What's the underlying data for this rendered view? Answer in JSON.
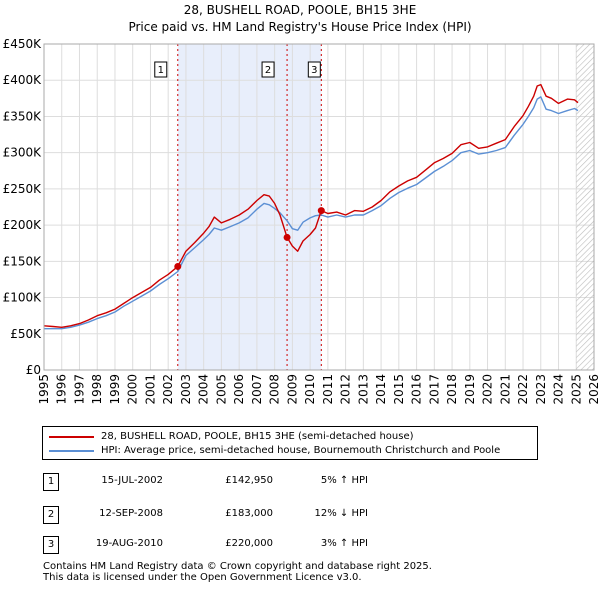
{
  "title_line1": "28, BUSHELL ROAD, POOLE, BH15 3HE",
  "title_line2": "Price paid vs. HM Land Registry's House Price Index (HPI)",
  "chart_data": {
    "type": "line",
    "title": "28, BUSHELL ROAD, POOLE, BH15 3HE — Price paid vs. HM Land Registry's House Price Index (HPI)",
    "xlim": [
      1995,
      2026
    ],
    "ylim": [
      0,
      450000
    ],
    "y_ticks": [
      0,
      50000,
      100000,
      150000,
      200000,
      250000,
      300000,
      350000,
      400000,
      450000
    ],
    "y_tick_labels": [
      "£0",
      "£50K",
      "£100K",
      "£150K",
      "£200K",
      "£250K",
      "£300K",
      "£350K",
      "£400K",
      "£450K"
    ],
    "x_ticks": [
      1995,
      1996,
      1997,
      1998,
      1999,
      2000,
      2001,
      2002,
      2003,
      2004,
      2005,
      2006,
      2007,
      2008,
      2009,
      2010,
      2011,
      2012,
      2013,
      2014,
      2015,
      2016,
      2017,
      2018,
      2019,
      2020,
      2021,
      2022,
      2023,
      2024,
      2025,
      2026
    ],
    "x_tick_labels": [
      "1995",
      "1996",
      "1997",
      "1998",
      "1999",
      "2000",
      "2001",
      "2002",
      "2003",
      "2004",
      "2005",
      "2006",
      "2007",
      "2008",
      "2009",
      "2010",
      "2011",
      "2012",
      "2013",
      "2014",
      "2015",
      "2016",
      "2017",
      "2018",
      "2019",
      "2020",
      "2021",
      "2022",
      "2023",
      "2024",
      "2025",
      "2026"
    ],
    "grid": true,
    "shaded_period": [
      2002.54,
      2010.63
    ],
    "forecast_start": 2025.0,
    "series": [
      {
        "name": "28, BUSHELL ROAD, POOLE, BH15 3HE (semi-detached house)",
        "color": "#cc0000",
        "x": [
          1995.0,
          1995.5,
          1996.0,
          1996.5,
          1997.0,
          1997.5,
          1998.0,
          1998.5,
          1999.0,
          1999.5,
          2000.0,
          2000.5,
          2001.0,
          2001.5,
          2002.0,
          2002.54,
          2003.0,
          2003.5,
          2004.0,
          2004.3,
          2004.6,
          2005.0,
          2005.5,
          2006.0,
          2006.5,
          2007.0,
          2007.4,
          2007.7,
          2008.0,
          2008.3,
          2008.7,
          2009.0,
          2009.3,
          2009.6,
          2010.0,
          2010.3,
          2010.63,
          2011.0,
          2011.5,
          2012.0,
          2012.5,
          2013.0,
          2013.5,
          2014.0,
          2014.5,
          2015.0,
          2015.5,
          2016.0,
          2016.5,
          2017.0,
          2017.5,
          2018.0,
          2018.5,
          2019.0,
          2019.5,
          2020.0,
          2020.5,
          2021.0,
          2021.5,
          2022.0,
          2022.3,
          2022.6,
          2022.8,
          2023.0,
          2023.3,
          2023.6,
          2024.0,
          2024.5,
          2024.9,
          2025.1
        ],
        "y": [
          61000,
          60000,
          59000,
          61000,
          64000,
          69000,
          75000,
          79000,
          84000,
          92000,
          100000,
          107000,
          114000,
          124000,
          132000,
          142950,
          164000,
          176000,
          189000,
          198000,
          211000,
          203000,
          208000,
          214000,
          222000,
          234000,
          242000,
          240000,
          230000,
          214000,
          183000,
          171000,
          164000,
          178000,
          187000,
          196000,
          220000,
          216000,
          218000,
          214000,
          220000,
          219000,
          225000,
          234000,
          246000,
          254000,
          261000,
          266000,
          276000,
          286000,
          292000,
          299000,
          311000,
          314000,
          306000,
          308000,
          313000,
          318000,
          336000,
          351000,
          364000,
          378000,
          392000,
          394000,
          378000,
          375000,
          368000,
          374000,
          373000,
          369000
        ]
      },
      {
        "name": "HPI: Average price, semi-detached house, Bournemouth Christchurch and Poole",
        "color": "#5b8fd4",
        "x": [
          1995.0,
          1995.5,
          1996.0,
          1996.5,
          1997.0,
          1997.5,
          1998.0,
          1998.5,
          1999.0,
          1999.5,
          2000.0,
          2000.5,
          2001.0,
          2001.5,
          2002.0,
          2002.54,
          2003.0,
          2003.5,
          2004.0,
          2004.3,
          2004.6,
          2005.0,
          2005.5,
          2006.0,
          2006.5,
          2007.0,
          2007.4,
          2007.7,
          2008.0,
          2008.3,
          2008.7,
          2009.0,
          2009.3,
          2009.6,
          2010.0,
          2010.3,
          2010.63,
          2011.0,
          2011.5,
          2012.0,
          2012.5,
          2013.0,
          2013.5,
          2014.0,
          2014.5,
          2015.0,
          2015.5,
          2016.0,
          2016.5,
          2017.0,
          2017.5,
          2018.0,
          2018.5,
          2019.0,
          2019.5,
          2020.0,
          2020.5,
          2021.0,
          2021.5,
          2022.0,
          2022.3,
          2022.6,
          2022.8,
          2023.0,
          2023.3,
          2023.6,
          2024.0,
          2024.5,
          2024.9,
          2025.1
        ],
        "y": [
          57000,
          57000,
          57000,
          59000,
          62000,
          66000,
          71000,
          75000,
          80000,
          88000,
          95000,
          102000,
          109000,
          118000,
          126000,
          136000,
          158000,
          169000,
          180000,
          187000,
          196000,
          193000,
          198000,
          203000,
          210000,
          222000,
          230000,
          228000,
          223000,
          217000,
          206000,
          195000,
          193000,
          204000,
          210000,
          213000,
          214000,
          211000,
          214000,
          211000,
          214000,
          214000,
          220000,
          227000,
          237000,
          245000,
          251000,
          256000,
          265000,
          274000,
          281000,
          289000,
          300000,
          303000,
          298000,
          300000,
          303000,
          307000,
          324000,
          339000,
          350000,
          362000,
          374000,
          377000,
          360000,
          358000,
          354000,
          358000,
          361000,
          358000
        ]
      }
    ],
    "sale_markers": [
      {
        "id": "1",
        "x": 2002.54,
        "y": 142950
      },
      {
        "id": "2",
        "x": 2008.7,
        "y": 183000
      },
      {
        "id": "3",
        "x": 2010.63,
        "y": 220000
      }
    ]
  },
  "legend": {
    "property_label": "28, BUSHELL ROAD, POOLE, BH15 3HE (semi-detached house)",
    "hpi_label": "HPI: Average price, semi-detached house, Bournemouth Christchurch and Poole"
  },
  "transactions": [
    {
      "num": "1",
      "date": "15-JUL-2002",
      "price": "£142,950",
      "diff": "5% ↑ HPI"
    },
    {
      "num": "2",
      "date": "12-SEP-2008",
      "price": "£183,000",
      "diff": "12% ↓ HPI"
    },
    {
      "num": "3",
      "date": "19-AUG-2010",
      "price": "£220,000",
      "diff": "3% ↑ HPI"
    }
  ],
  "footer": {
    "line1": "Contains HM Land Registry data © Crown copyright and database right 2025.",
    "line2": "This data is licensed under the Open Government Licence v3.0."
  }
}
